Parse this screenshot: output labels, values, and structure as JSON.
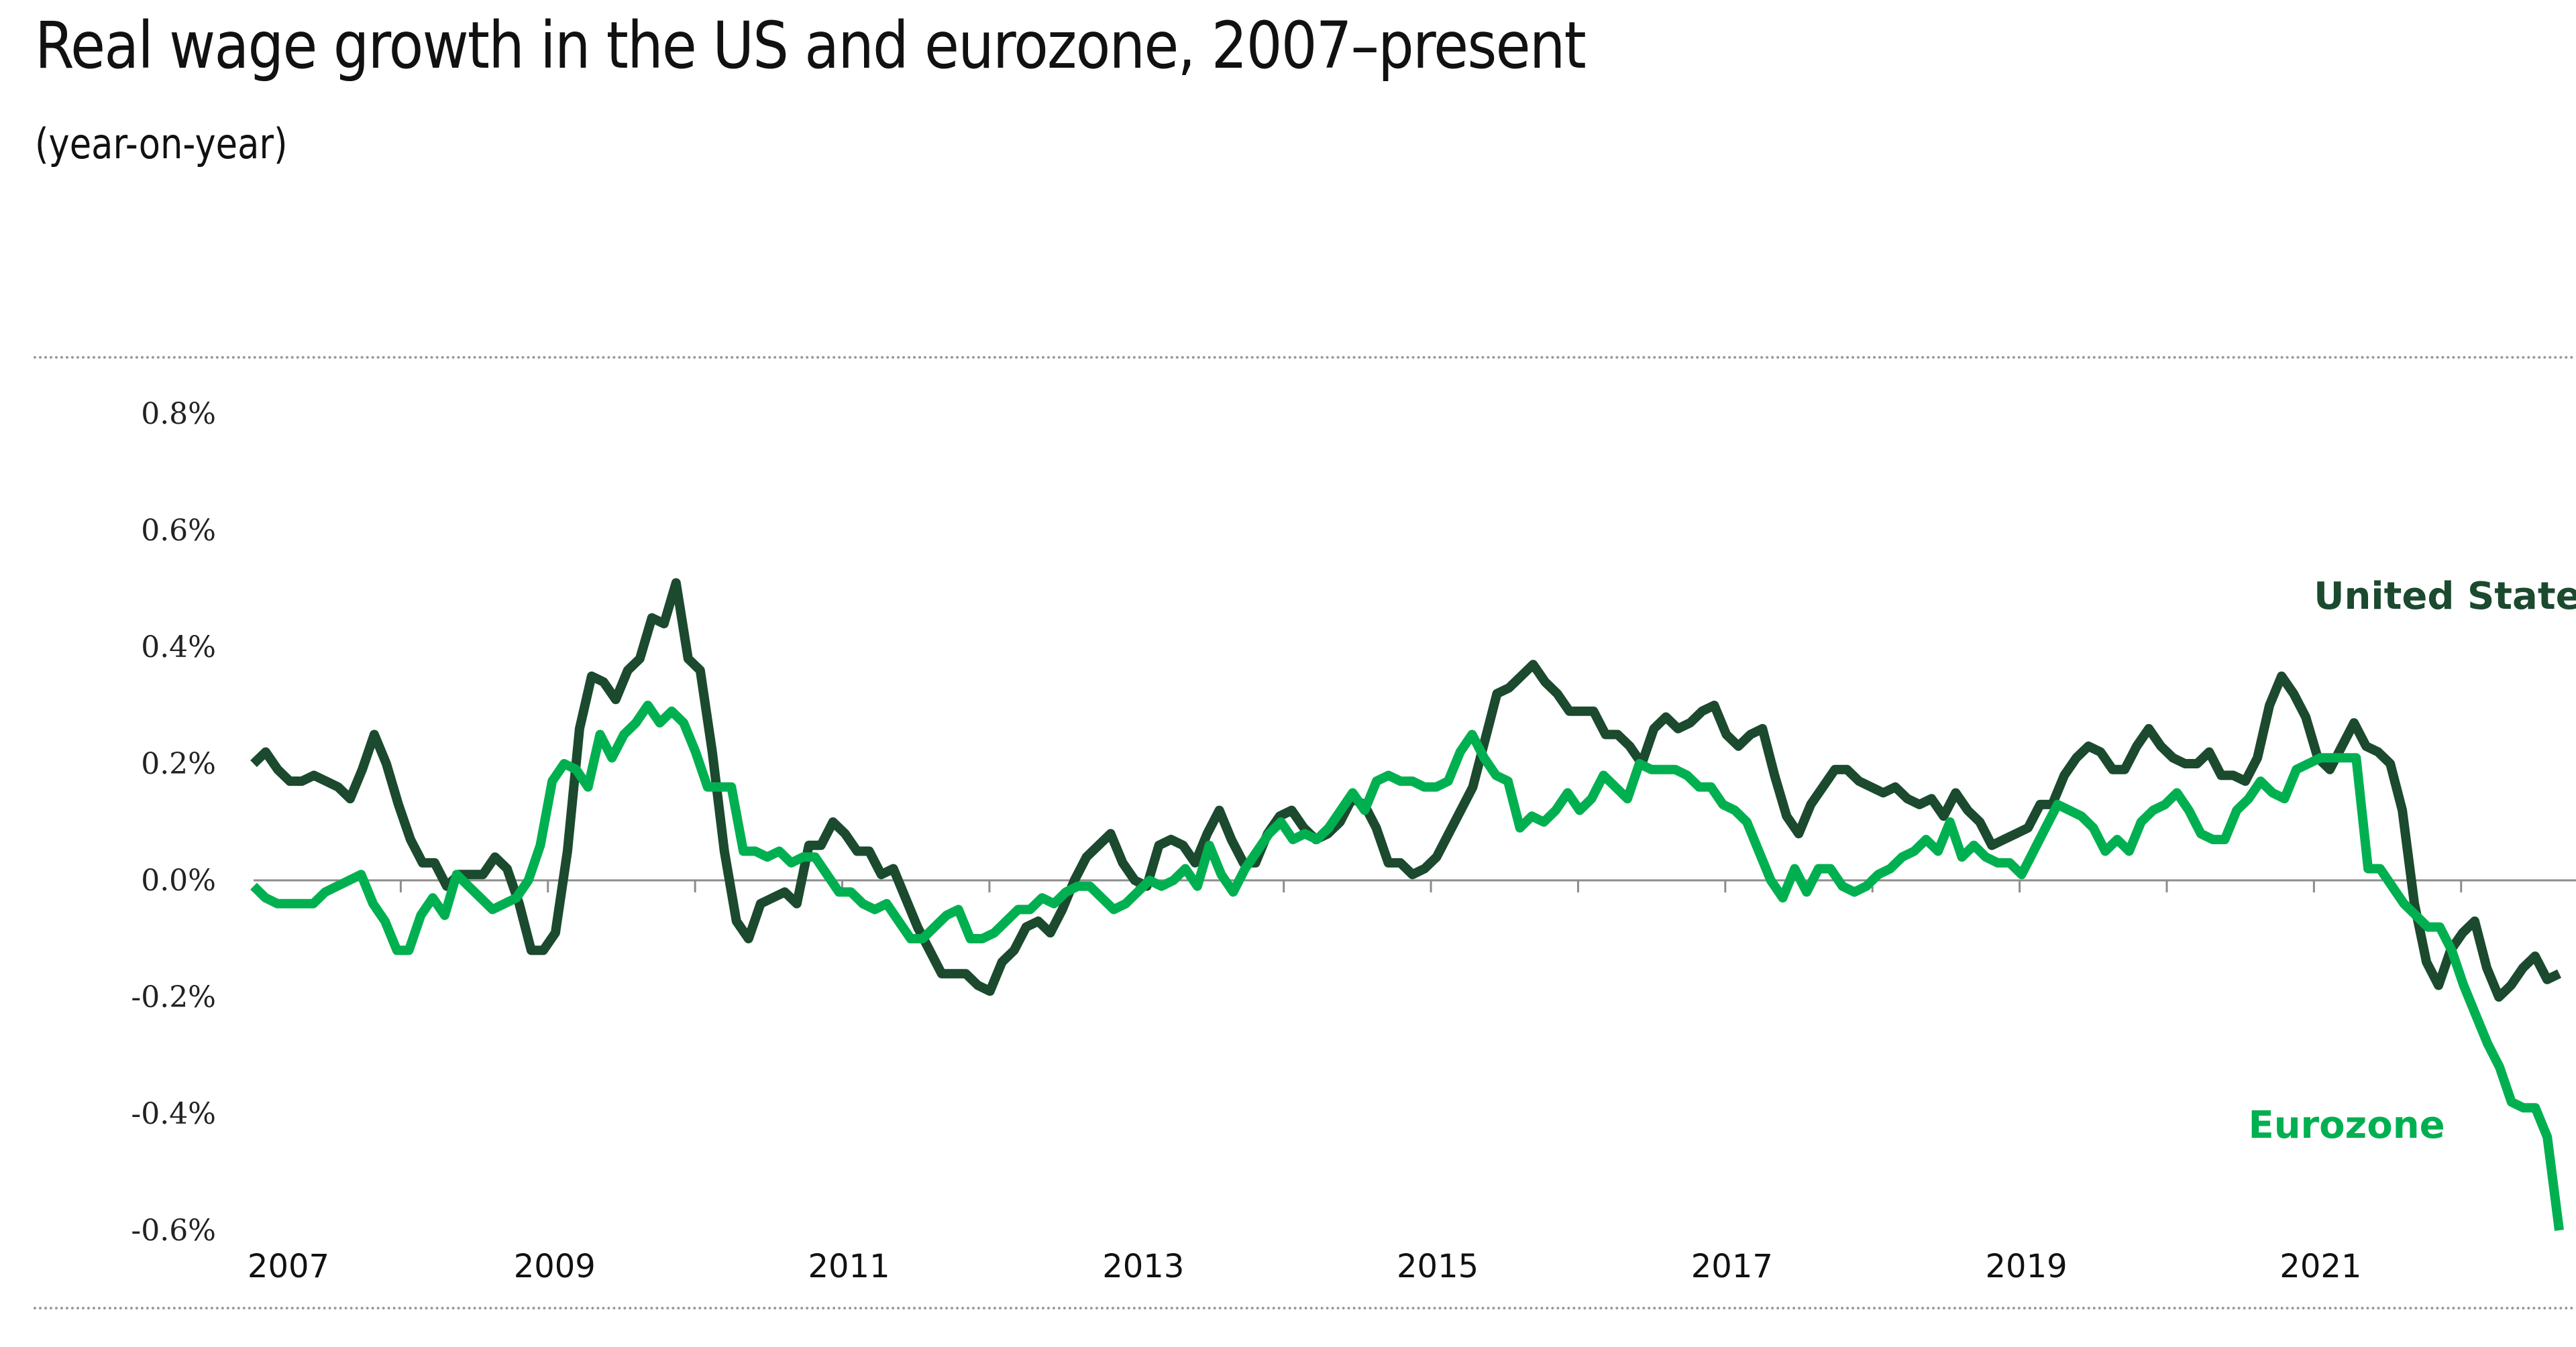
{
  "chart_data": {
    "type": "line",
    "title": "Real wage growth in the US and eurozone, 2007–present",
    "subtitle": "(year-on-year)",
    "xlabel": "",
    "ylabel": "",
    "x_start": "2007-01",
    "frequency": "monthly",
    "x_tick_labels": [
      "2007",
      "2009",
      "2011",
      "2013",
      "2015",
      "2017",
      "2019",
      "2021"
    ],
    "x_tick_years": [
      2007,
      2009,
      2011,
      2013,
      2015,
      2017,
      2019,
      2021
    ],
    "y_tick_labels": [
      "0.8%",
      "0.6%",
      "0.4%",
      "0.2%",
      "0.0%",
      "-0.2%",
      "-0.4%",
      "-0.6%"
    ],
    "y_tick_values": [
      0.8,
      0.6,
      0.4,
      0.2,
      0.0,
      -0.2,
      -0.4,
      -0.6
    ],
    "ylim": [
      -0.6,
      0.8
    ],
    "xlim": [
      "2007-01",
      "2022-09"
    ],
    "grid": false,
    "zero_line": true,
    "legend": "inline-labels",
    "series": [
      {
        "name": "United States",
        "color": "#1b4a2e",
        "label_position": "top-right",
        "values": [
          0.2,
          0.22,
          0.19,
          0.17,
          0.17,
          0.18,
          0.17,
          0.16,
          0.14,
          0.19,
          0.25,
          0.2,
          0.13,
          0.07,
          0.03,
          0.03,
          -0.01,
          0.01,
          0.01,
          0.01,
          0.04,
          0.02,
          -0.04,
          -0.12,
          -0.12,
          -0.09,
          0.05,
          0.26,
          0.35,
          0.34,
          0.31,
          0.36,
          0.38,
          0.45,
          0.44,
          0.51,
          0.38,
          0.36,
          0.22,
          0.05,
          -0.07,
          -0.1,
          -0.04,
          -0.03,
          -0.02,
          -0.04,
          0.06,
          0.06,
          0.1,
          0.08,
          0.05,
          0.05,
          0.01,
          0.02,
          -0.03,
          -0.08,
          -0.12,
          -0.16,
          -0.16,
          -0.16,
          -0.18,
          -0.19,
          -0.14,
          -0.12,
          -0.08,
          -0.07,
          -0.09,
          -0.05,
          0.0,
          0.04,
          0.06,
          0.08,
          0.03,
          0.0,
          -0.01,
          0.06,
          0.07,
          0.06,
          0.03,
          0.08,
          0.12,
          0.07,
          0.03,
          0.03,
          0.08,
          0.11,
          0.12,
          0.09,
          0.07,
          0.08,
          0.1,
          0.14,
          0.13,
          0.09,
          0.03,
          0.03,
          0.01,
          0.02,
          0.04,
          0.08,
          0.12,
          0.16,
          0.24,
          0.32,
          0.33,
          0.35,
          0.37,
          0.34,
          0.32,
          0.29,
          0.29,
          0.29,
          0.25,
          0.25,
          0.23,
          0.2,
          0.26,
          0.28,
          0.26,
          0.27,
          0.29,
          0.3,
          0.25,
          0.23,
          0.25,
          0.26,
          0.18,
          0.11,
          0.08,
          0.13,
          0.16,
          0.19,
          0.19,
          0.17,
          0.16,
          0.15,
          0.16,
          0.14,
          0.13,
          0.14,
          0.11,
          0.15,
          0.12,
          0.1,
          0.06,
          0.07,
          0.08,
          0.09,
          0.13,
          0.13,
          0.18,
          0.21,
          0.23,
          0.22,
          0.19,
          0.19,
          0.23,
          0.26,
          0.23,
          0.21,
          0.2,
          0.2,
          0.22,
          0.18,
          0.18,
          0.17,
          0.21,
          0.3,
          0.35,
          0.32,
          0.28,
          0.21,
          0.19,
          0.23,
          0.27,
          0.23,
          0.22,
          0.2,
          0.12,
          -0.04,
          -0.14,
          -0.18,
          -0.12,
          -0.09,
          -0.07,
          -0.15,
          -0.2,
          -0.18,
          -0.15,
          -0.13,
          -0.17,
          -0.16
        ],
        "label": "United States"
      },
      {
        "name": "Eurozone",
        "color": "#00b050",
        "label_position": "bottom-right",
        "values": [
          -0.01,
          -0.03,
          -0.04,
          -0.04,
          -0.04,
          -0.04,
          -0.02,
          -0.01,
          0.0,
          0.01,
          -0.04,
          -0.07,
          -0.12,
          -0.12,
          -0.06,
          -0.03,
          -0.06,
          0.01,
          -0.01,
          -0.03,
          -0.05,
          -0.04,
          -0.03,
          0.0,
          0.06,
          0.17,
          0.2,
          0.19,
          0.16,
          0.25,
          0.21,
          0.25,
          0.27,
          0.3,
          0.27,
          0.29,
          0.27,
          0.22,
          0.16,
          0.16,
          0.16,
          0.05,
          0.05,
          0.04,
          0.05,
          0.03,
          0.04,
          0.04,
          0.01,
          -0.02,
          -0.02,
          -0.04,
          -0.05,
          -0.04,
          -0.07,
          -0.1,
          -0.1,
          -0.08,
          -0.06,
          -0.05,
          -0.1,
          -0.1,
          -0.09,
          -0.07,
          -0.05,
          -0.05,
          -0.03,
          -0.04,
          -0.02,
          -0.01,
          -0.01,
          -0.03,
          -0.05,
          -0.04,
          -0.02,
          0.0,
          -0.01,
          0.0,
          0.02,
          -0.01,
          0.06,
          0.01,
          -0.02,
          0.02,
          0.05,
          0.08,
          0.1,
          0.07,
          0.08,
          0.07,
          0.09,
          0.12,
          0.15,
          0.12,
          0.17,
          0.18,
          0.17,
          0.17,
          0.16,
          0.16,
          0.17,
          0.22,
          0.25,
          0.21,
          0.18,
          0.17,
          0.09,
          0.11,
          0.1,
          0.12,
          0.15,
          0.12,
          0.14,
          0.18,
          0.16,
          0.14,
          0.2,
          0.19,
          0.19,
          0.19,
          0.18,
          0.16,
          0.16,
          0.13,
          0.12,
          0.1,
          0.05,
          0.0,
          -0.03,
          0.02,
          -0.02,
          0.02,
          0.02,
          -0.01,
          -0.02,
          -0.01,
          0.01,
          0.02,
          0.04,
          0.05,
          0.07,
          0.05,
          0.1,
          0.04,
          0.06,
          0.04,
          0.03,
          0.03,
          0.01,
          0.05,
          0.09,
          0.13,
          0.12,
          0.11,
          0.09,
          0.05,
          0.07,
          0.05,
          0.1,
          0.12,
          0.13,
          0.15,
          0.12,
          0.08,
          0.07,
          0.07,
          0.12,
          0.14,
          0.17,
          0.15,
          0.14,
          0.19,
          0.2,
          0.21,
          0.21,
          0.21,
          0.21,
          0.02,
          0.02,
          -0.01,
          -0.04,
          -0.06,
          -0.08,
          -0.08,
          -0.12,
          -0.18,
          -0.23,
          -0.28,
          -0.32,
          -0.38,
          -0.39,
          -0.39,
          -0.44,
          -0.6
        ],
        "label": "Eurozone"
      }
    ]
  }
}
